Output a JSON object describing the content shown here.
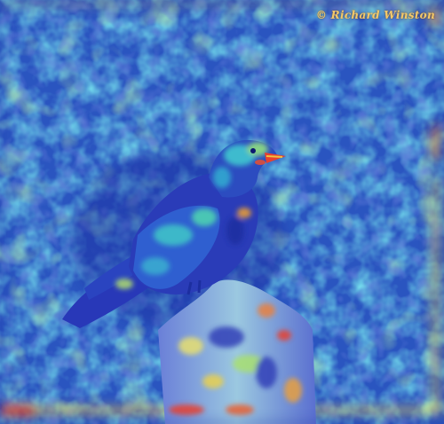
{
  "photo": {
    "subject": "crow-on-post",
    "overlay": "heatmap"
  },
  "watermark": {
    "text": "© Richard Winston"
  },
  "colors": {
    "background_blue": "#1a3fb0",
    "cyan": "#2fd0d0",
    "green": "#6fe08a",
    "yellow": "#f0e050",
    "red": "#e8401f"
  }
}
